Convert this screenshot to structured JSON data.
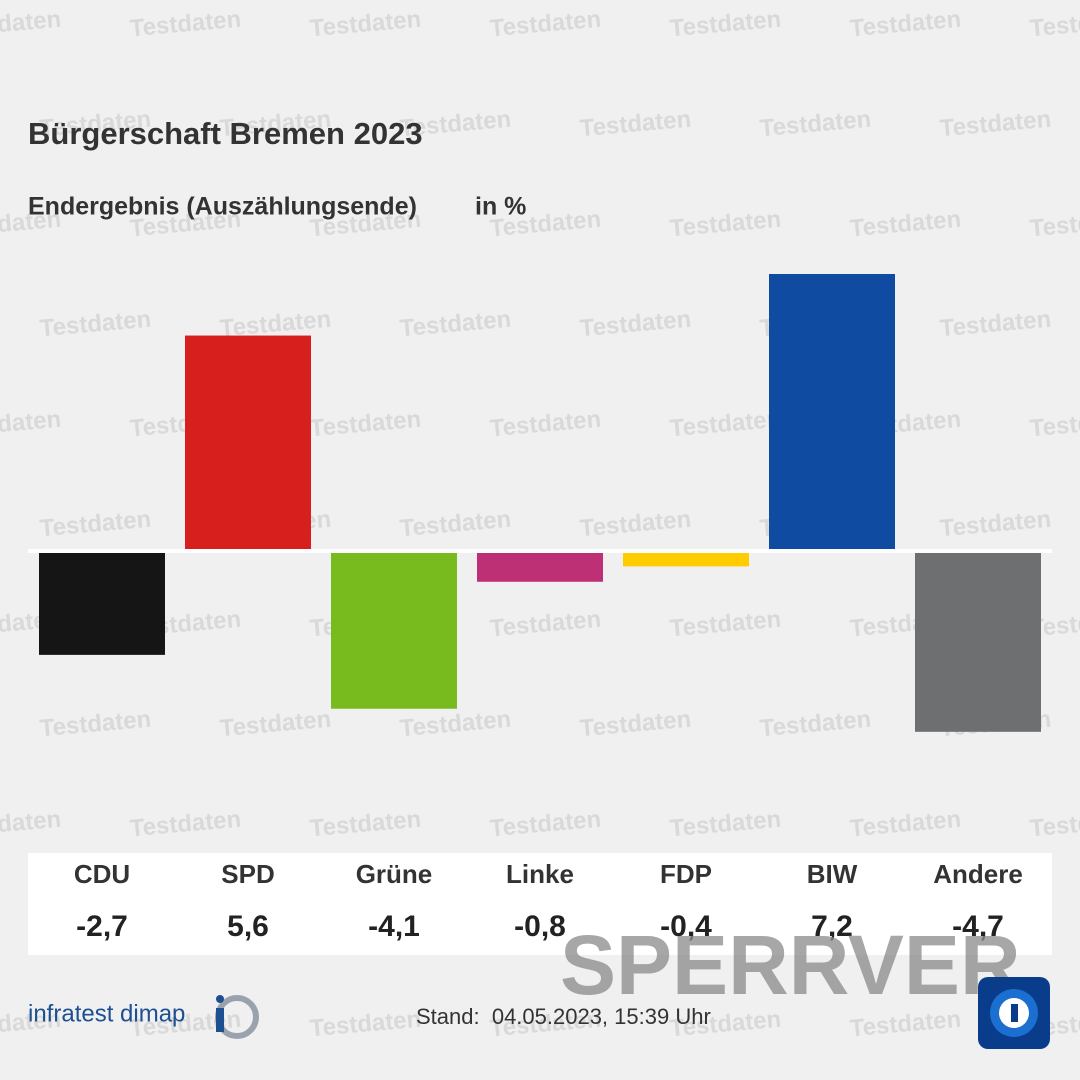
{
  "chart_data": {
    "type": "bar",
    "title": "Bürgerschaft Bremen 2023",
    "subtitle": "Endergebnis (Auszählungsende)",
    "unit": "in %",
    "categories": [
      "CDU",
      "SPD",
      "Grüne",
      "Linke",
      "FDP",
      "BIW",
      "Andere"
    ],
    "values": [
      -2.7,
      5.6,
      -4.1,
      -0.8,
      -0.4,
      7.2,
      -4.7
    ],
    "value_labels": [
      "-2,7",
      "5,6",
      "-4,1",
      "-0,8",
      "-0,4",
      "7,2",
      "-4,7"
    ],
    "colors": [
      "#151515",
      "#d71f1d",
      "#78bb1e",
      "#be3075",
      "#ffcc00",
      "#0f4ba0",
      "#6e6f71"
    ],
    "source": "infratest dimap",
    "timestamp": "Stand:  04.05.2023, 15:39 Uhr",
    "watermark": "Testdaten",
    "embargo": "SPERRVER"
  }
}
